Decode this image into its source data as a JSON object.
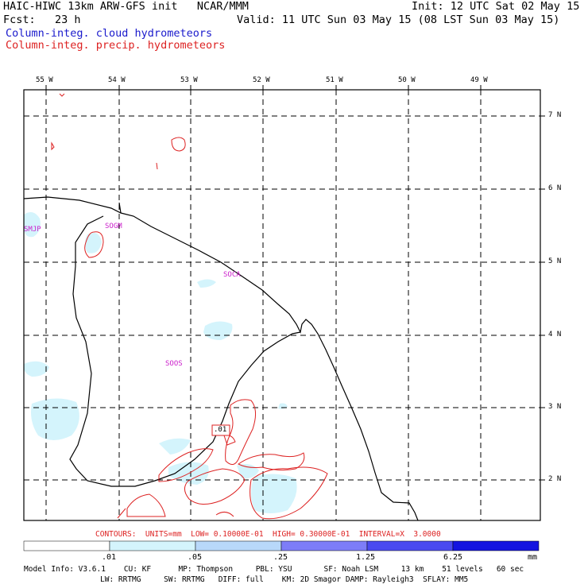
{
  "header": {
    "line1_left": "HAIC-HIWC 13km ARW-GFS init   NCAR/MMM",
    "line1_right": "Init: 12 UTC Sat 02 May 15",
    "line2_left": "Fcst:   23 h",
    "line2_right": "Valid: 11 UTC Sun 03 May 15 (08 LST Sun 03 May 15)",
    "legend_cloud": "Column-integ. cloud hydrometeors",
    "legend_precip": "Column-integ. precip. hydrometeors"
  },
  "map": {
    "lon_labels": [
      "55 W",
      "54 W",
      "53 W",
      "52 W",
      "51 W",
      "50 W",
      "49 W"
    ],
    "lat_labels": [
      "7 N",
      "6 N",
      "5 N",
      "4 N",
      "3 N",
      "2 N"
    ],
    "stations": [
      "SMJP",
      "SOGM",
      "SOCA",
      "SOOS"
    ],
    "contour_label": ".01",
    "colors": {
      "coast": "#000000",
      "grid": "#000000",
      "cloud_fill": "#d4f4fc",
      "precip_contour": "#dd2222",
      "station": "#cc22cc"
    }
  },
  "contour_info": "CONTOURS:  UNITS=mm  LOW= 0.10000E-01  HIGH= 0.30000E-01  INTERVAL=X  3.0000",
  "colorbar": {
    "ticks": [
      ".01",
      ".05",
      ".25",
      "1.25",
      "6.25"
    ],
    "units": "mm",
    "colors": [
      "#ffffff",
      "#d4f4fc",
      "#b8d8fa",
      "#7d7df8",
      "#4a4af0",
      "#1414e0"
    ]
  },
  "model_info": {
    "line1": "Model Info: V3.6.1    CU: KF      MP: Thompson     PBL: YSU       SF: Noah LSM     13 km    51 levels   60 sec",
    "line2": "LW: RRTMG     SW: RRTMG   DIFF: full    KM: 2D Smagor DAMP: Rayleigh3  SFLAY: MM5"
  }
}
